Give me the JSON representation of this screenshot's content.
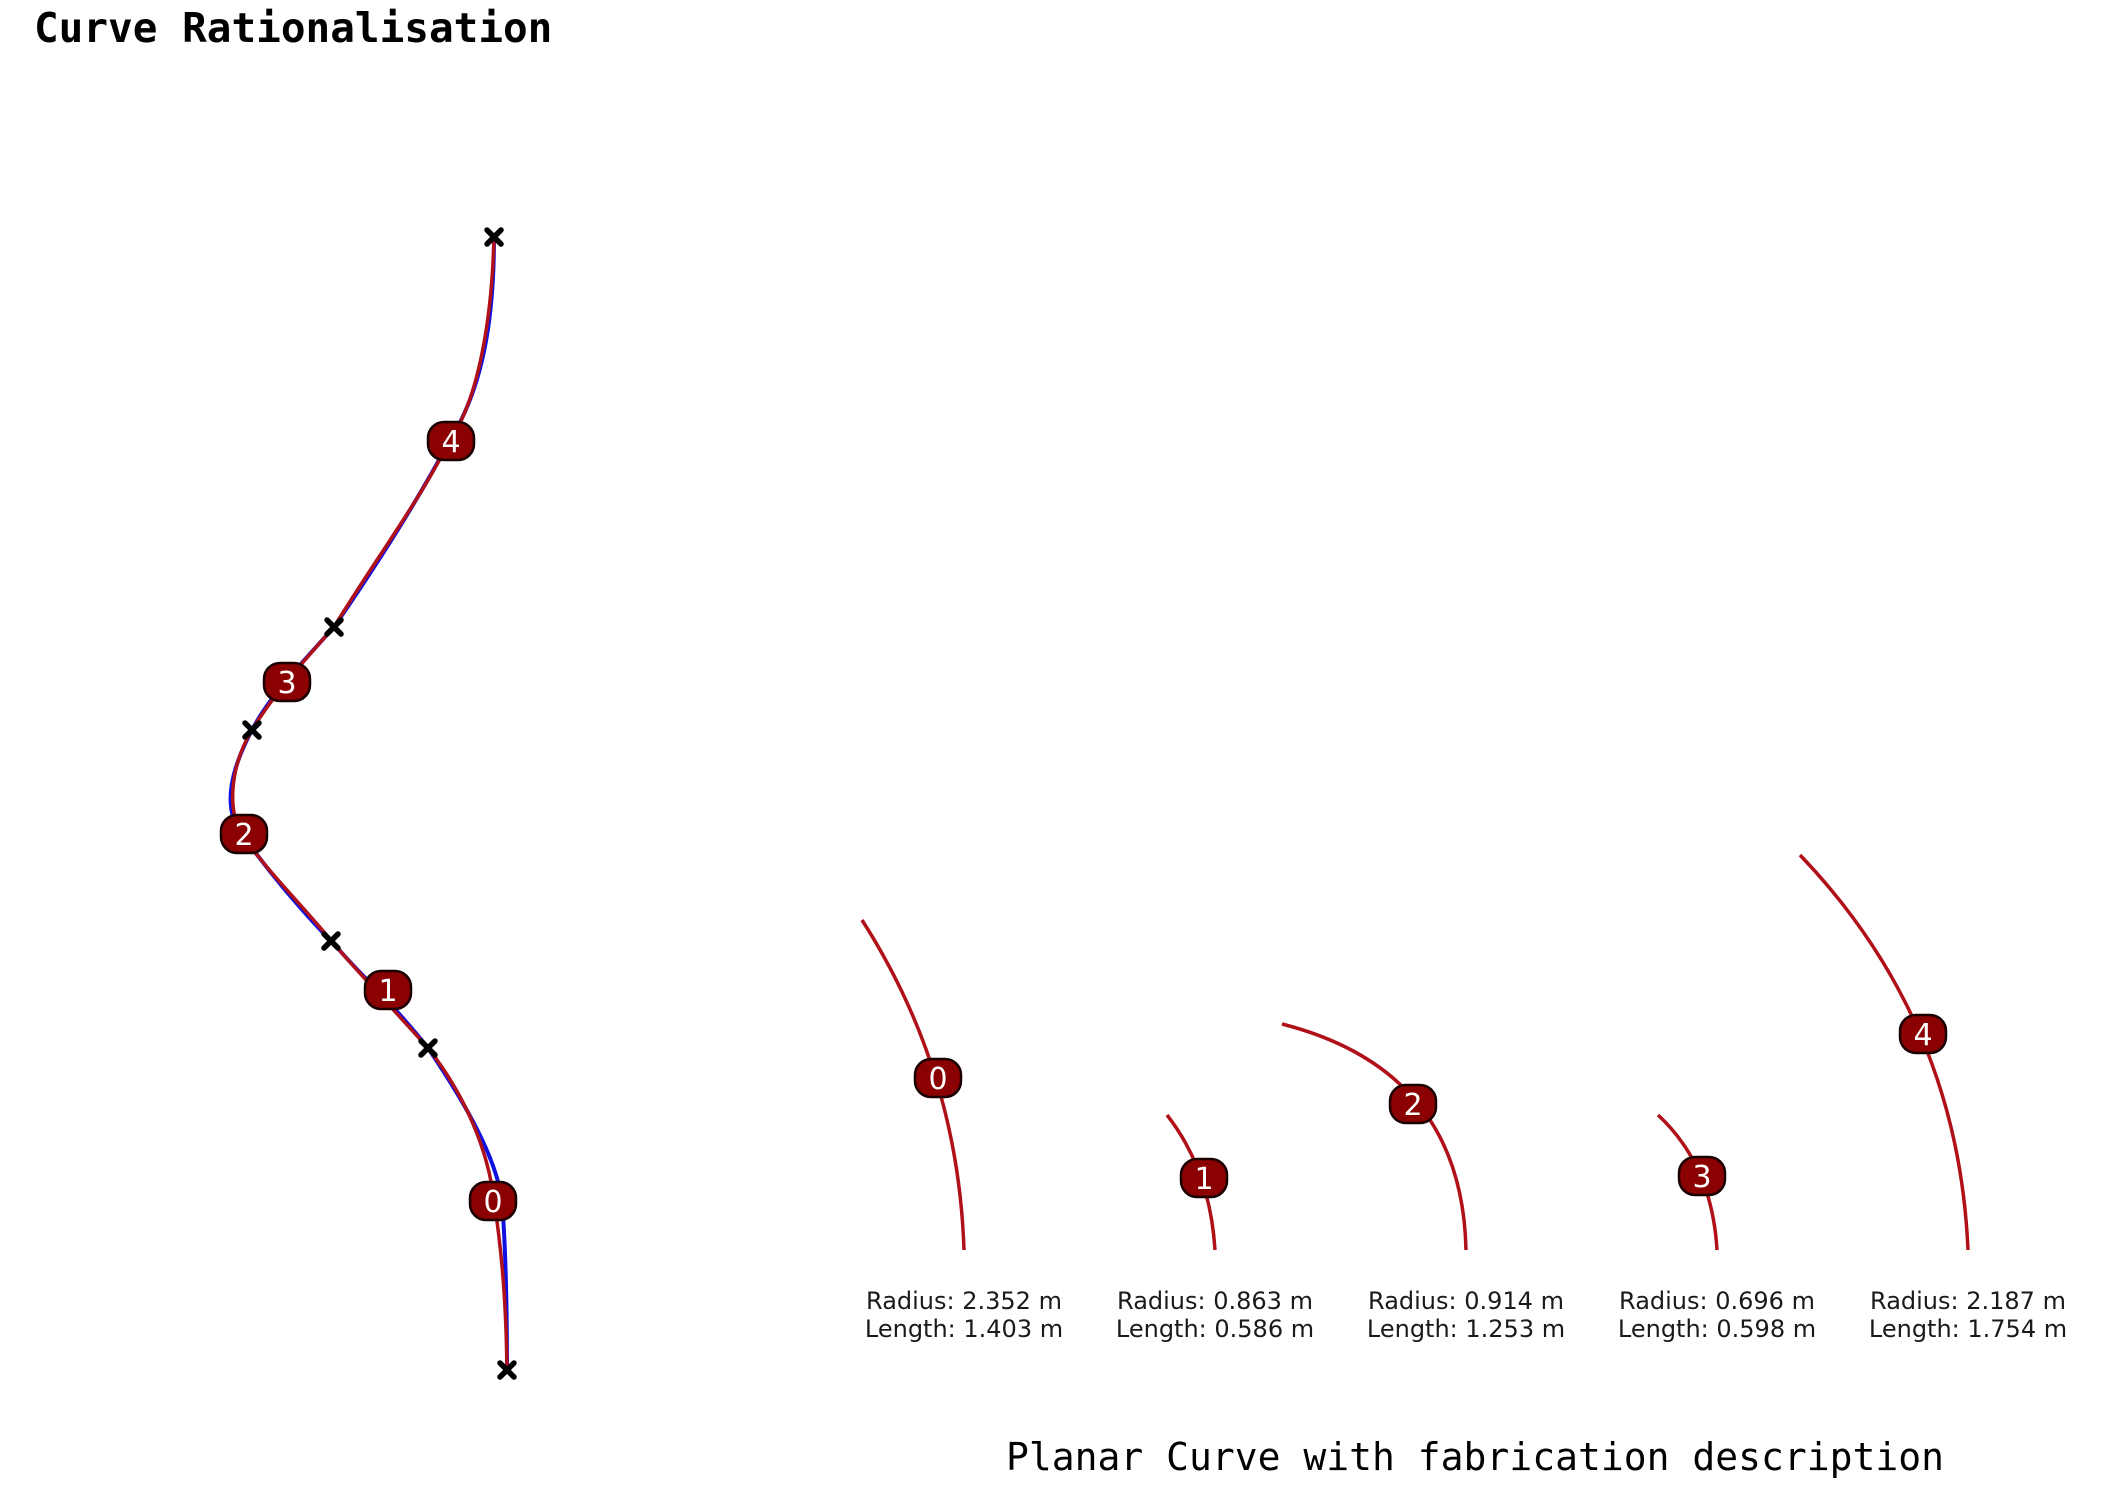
{
  "title": "Curve Rationalisation",
  "subtitle": "Planar Curve with fabrication description",
  "colors": {
    "arc": "#b01018",
    "curve_blue": "#1010e0",
    "badge_fill": "#8b0000",
    "badge_stroke": "#1a0000",
    "marker": "#000000"
  },
  "segments": [
    {
      "label": "0",
      "radius": "Radius: 2.352 m",
      "length": "Length: 1.403 m"
    },
    {
      "label": "1",
      "radius": "Radius: 0.863 m",
      "length": "Length: 0.586 m"
    },
    {
      "label": "2",
      "radius": "Radius: 0.914 m",
      "length": "Length: 1.253 m"
    },
    {
      "label": "3",
      "radius": "Radius: 0.696 m",
      "length": "Length: 0.598 m"
    },
    {
      "label": "4",
      "radius": "Radius: 2.187 m",
      "length": "Length: 1.754 m"
    }
  ]
}
